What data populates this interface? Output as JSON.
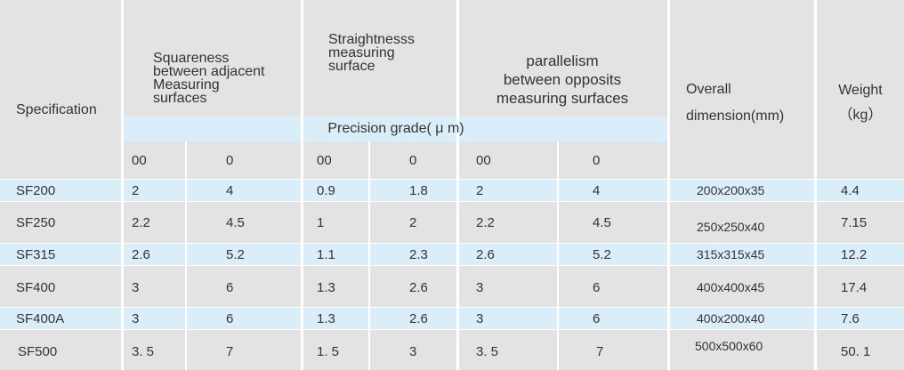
{
  "headers": {
    "specification": "Specification",
    "squareness": [
      "Squareness",
      "between adjacent",
      "Measuring",
      "surfaces"
    ],
    "straightness": [
      "Straightnesss",
      "measuring",
      "surface"
    ],
    "parallelism": [
      "parallelism",
      "between opposits",
      "measuring surfaces"
    ],
    "overall": [
      "Overall",
      "dimension(mm)"
    ],
    "weight": [
      "Weight",
      "（kg）"
    ],
    "precision_grade": "Precision grade( μ m)",
    "grades": [
      "00",
      "0",
      "00",
      "0",
      "00",
      "0"
    ]
  },
  "rows": [
    {
      "spec": "SF200",
      "sq00": "2",
      "sq0": "4",
      "st00": "0.9",
      "st0": "1.8",
      "pa00": "2",
      "pa0": "4",
      "dim": "200x200x35",
      "weight": "4.4"
    },
    {
      "spec": "SF250",
      "sq00": "2.2",
      "sq0": "4.5",
      "st00": "1",
      "st0": "2",
      "pa00": "2.2",
      "pa0": "4.5",
      "dim": "250x250x40",
      "weight": "7.15"
    },
    {
      "spec": "SF315",
      "sq00": "2.6",
      "sq0": "5.2",
      "st00": "1.1",
      "st0": "2.3",
      "pa00": "2.6",
      "pa0": "5.2",
      "dim": "315x315x45",
      "weight": "12.2"
    },
    {
      "spec": "SF400",
      "sq00": "3",
      "sq0": "6",
      "st00": "1.3",
      "st0": "2.6",
      "pa00": "3",
      "pa0": "6",
      "dim": "400x400x45",
      "weight": "17.4"
    },
    {
      "spec": "SF400A",
      "sq00": "3",
      "sq0": "6",
      "st00": "1.3",
      "st0": "2.6",
      "pa00": "3",
      "pa0": "6",
      "dim": "400x200x40",
      "weight": "7.6"
    },
    {
      "spec": "SF500",
      "sq00": "3. 5",
      "sq0": "7",
      "st00": "1. 5",
      "st0": "3",
      "pa00": "3. 5",
      "pa0": "7",
      "dim": "500x500x60",
      "weight": "50. 1"
    }
  ]
}
